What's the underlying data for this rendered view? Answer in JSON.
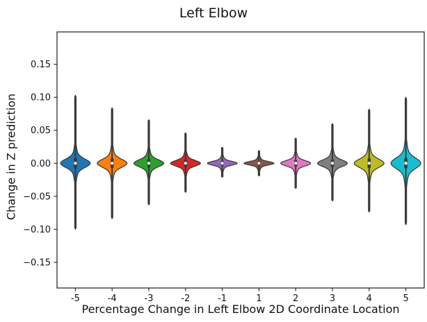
{
  "chart_data": {
    "type": "violin",
    "title": "Left Elbow",
    "xlabel": "Percentage Change in Left Elbow 2D Coordinate Location",
    "ylabel": "Change in Z prediction",
    "categories": [
      "-5",
      "-4",
      "-3",
      "-2",
      "-1",
      "1",
      "2",
      "3",
      "4",
      "5"
    ],
    "ylim": [
      -0.189,
      0.199
    ],
    "yticks": [
      {
        "value": 0.15,
        "label": "0.15"
      },
      {
        "value": 0.1,
        "label": "0.10"
      },
      {
        "value": 0.05,
        "label": "0.05"
      },
      {
        "value": 0.0,
        "label": "0.00"
      },
      {
        "value": -0.05,
        "label": "−0.05"
      },
      {
        "value": -0.1,
        "label": "−0.10"
      },
      {
        "value": -0.15,
        "label": "−0.15"
      }
    ],
    "grid": false,
    "legend": null,
    "palette_name": "tab10",
    "edge_color": "#3a3a3a",
    "background_color": "#ffffff",
    "violins": [
      {
        "category": "-5",
        "color": "#1f77b4",
        "min": -0.1,
        "max": 0.103,
        "median": 0.0,
        "q1": -0.008,
        "q3": 0.008,
        "sigma": 0.006
      },
      {
        "category": "-4",
        "color": "#ff7f0e",
        "min": -0.084,
        "max": 0.084,
        "median": 0.0,
        "q1": -0.0075,
        "q3": 0.0075,
        "sigma": 0.0057
      },
      {
        "category": "-3",
        "color": "#2ca02c",
        "min": -0.063,
        "max": 0.066,
        "median": 0.0,
        "q1": -0.0065,
        "q3": 0.0065,
        "sigma": 0.005
      },
      {
        "category": "-2",
        "color": "#d62728",
        "min": -0.044,
        "max": 0.046,
        "median": 0.0,
        "q1": -0.0055,
        "q3": 0.0055,
        "sigma": 0.004
      },
      {
        "category": "-1",
        "color": "#9467bd",
        "min": -0.021,
        "max": 0.024,
        "median": 0.0,
        "q1": -0.004,
        "q3": 0.004,
        "sigma": 0.0027
      },
      {
        "category": "1",
        "color": "#8c564b",
        "min": -0.019,
        "max": 0.019,
        "median": 0.0,
        "q1": -0.0035,
        "q3": 0.0035,
        "sigma": 0.0024
      },
      {
        "category": "2",
        "color": "#e377c2",
        "min": -0.038,
        "max": 0.038,
        "median": 0.0,
        "q1": -0.005,
        "q3": 0.005,
        "sigma": 0.0037
      },
      {
        "category": "3",
        "color": "#7f7f7f",
        "min": -0.057,
        "max": 0.06,
        "median": 0.0,
        "q1": -0.006,
        "q3": 0.006,
        "sigma": 0.0047
      },
      {
        "category": "4",
        "color": "#bcbd22",
        "min": -0.074,
        "max": 0.082,
        "median": 0.0,
        "q1": -0.0075,
        "q3": 0.0075,
        "sigma": 0.006
      },
      {
        "category": "5",
        "color": "#17becf",
        "min": -0.093,
        "max": 0.1,
        "median": 0.0,
        "q1": -0.008,
        "q3": 0.008,
        "sigma": 0.0075
      }
    ]
  }
}
